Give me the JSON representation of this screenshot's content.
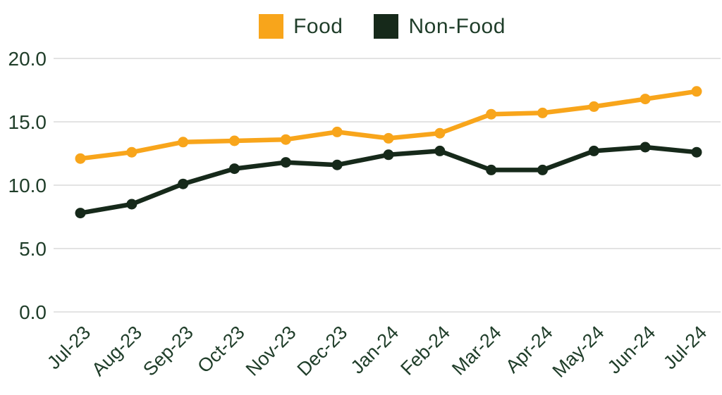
{
  "chart_data": {
    "type": "line",
    "title": "",
    "xlabel": "",
    "ylabel": "",
    "categories": [
      "Jul-23",
      "Aug-23",
      "Sep-23",
      "Oct-23",
      "Nov-23",
      "Dec-23",
      "Jan-24",
      "Feb-24",
      "Mar-24",
      "Apr-24",
      "May-24",
      "Jun-24",
      "Jul-24"
    ],
    "series": [
      {
        "name": "Food",
        "color": "#F8A51B",
        "values": [
          12.1,
          12.6,
          13.4,
          13.5,
          13.6,
          14.2,
          13.7,
          14.1,
          15.6,
          15.7,
          16.2,
          16.8,
          17.4
        ]
      },
      {
        "name": "Non-Food",
        "color": "#16291A",
        "values": [
          7.8,
          8.5,
          10.1,
          11.3,
          11.8,
          11.6,
          12.4,
          12.7,
          11.2,
          11.2,
          12.7,
          13.0,
          12.6
        ]
      }
    ],
    "ylim": [
      0,
      20
    ],
    "ytick_labels": [
      "0.0",
      "5.0",
      "10.0",
      "15.0",
      "20.0"
    ],
    "grid": true,
    "legend_position": "top-center"
  },
  "colors": {
    "axis_text": "#1F3D29",
    "gridline": "#DADADA",
    "background": "#FFFFFF"
  }
}
